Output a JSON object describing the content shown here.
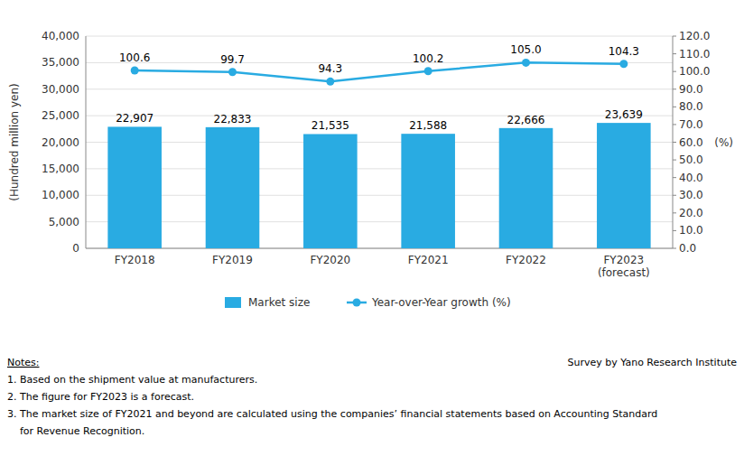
{
  "chart_data": {
    "type": "bar",
    "categories": [
      "FY2018",
      "FY2019",
      "FY2020",
      "FY2021",
      "FY2022",
      "FY2023\n(forecast)"
    ],
    "series": [
      {
        "name": "Market size",
        "type": "bar",
        "color": "#29ABE2",
        "values": [
          22907,
          22833,
          21535,
          21588,
          22666,
          23639
        ],
        "value_labels": [
          "22,907",
          "22,833",
          "21,535",
          "21,588",
          "22,666",
          "23,639"
        ]
      },
      {
        "name": "Year-over-Year growth (%)",
        "type": "line",
        "axis": "y2",
        "color": "#29ABE2",
        "marker": "circle",
        "values": [
          100.6,
          99.7,
          94.3,
          100.2,
          105.0,
          104.3
        ],
        "value_labels": [
          "100.6",
          "99.7",
          "94.3",
          "100.2",
          "105.0",
          "104.3"
        ]
      }
    ],
    "ylabel": "(Hundred million yen)",
    "y2label": "(%)",
    "ylim": [
      0,
      40000
    ],
    "yticks": [
      {
        "value": 0,
        "label": "0"
      },
      {
        "value": 5000,
        "label": "5,000"
      },
      {
        "value": 10000,
        "label": "10,000"
      },
      {
        "value": 15000,
        "label": "15,000"
      },
      {
        "value": 20000,
        "label": "20,000"
      },
      {
        "value": 25000,
        "label": "25,000"
      },
      {
        "value": 30000,
        "label": "30,000"
      },
      {
        "value": 35000,
        "label": "35,000"
      },
      {
        "value": 40000,
        "label": "40,000"
      }
    ],
    "y2lim": [
      0.0,
      120.0
    ],
    "y2ticks": [
      {
        "value": 0,
        "label": "0.0"
      },
      {
        "value": 10,
        "label": "10.0"
      },
      {
        "value": 20,
        "label": "20.0"
      },
      {
        "value": 30,
        "label": "30.0"
      },
      {
        "value": 40,
        "label": "40.0"
      },
      {
        "value": 50,
        "label": "50.0"
      },
      {
        "value": 60,
        "label": "60.0"
      },
      {
        "value": 70,
        "label": "70.0"
      },
      {
        "value": 80,
        "label": "80.0"
      },
      {
        "value": 90,
        "label": "90.0"
      },
      {
        "value": 100,
        "label": "100.0"
      },
      {
        "value": 110,
        "label": "110.0"
      },
      {
        "value": 120,
        "label": "120.0"
      }
    ],
    "grid": true,
    "legend": "bottom",
    "data_labels": true,
    "notes_title": "Notes:",
    "notes": [
      "1. Based on the shipment value at manufacturers.",
      "2. The figure for FY2023 is a forecast.",
      "3. The market size of FY2021 and beyond are calculated using the companies’ financial statements based on Accounting Standard",
      "    for Revenue Recognition."
    ],
    "source": "Survey by Yano Research Institute"
  }
}
